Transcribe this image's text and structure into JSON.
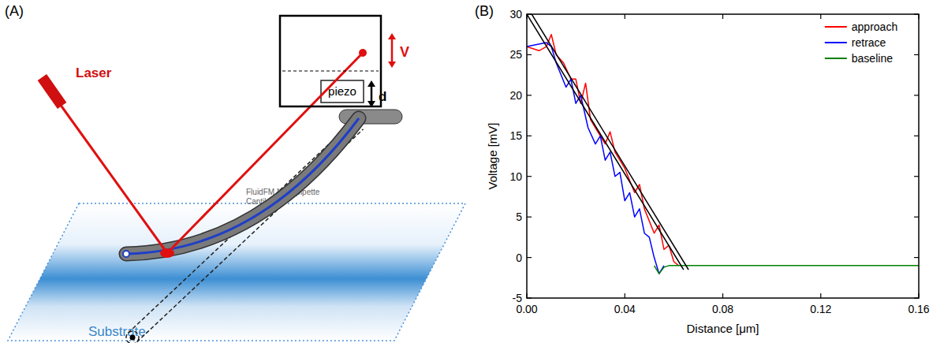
{
  "panel_labels": [
    "(A)",
    "(B)"
  ],
  "diagram": {
    "laser": "Laser",
    "signal": "V",
    "piezo": "piezo",
    "displacement": "d",
    "cantilever": "FluidFM Micropipette Cantilever",
    "substrate": "Substrate"
  },
  "chart_data": {
    "type": "line",
    "x_label": "Distance [μm]",
    "y_label": "Voltage [mV]",
    "xlim": [
      0,
      0.16
    ],
    "ylim": [
      -5,
      30
    ],
    "xticks": [
      {
        "value": 0,
        "label": "0.00"
      },
      0.04,
      0.08,
      0.12,
      0.16
    ],
    "yticks": [
      -5,
      0,
      5,
      10,
      15,
      20,
      25,
      30
    ],
    "grid": false,
    "legend": "upper right",
    "series": [
      {
        "name": "approach",
        "color": "#ff0000",
        "line_style": "solid",
        "x": [
          0,
          0.005,
          0.008,
          0.01,
          0.012,
          0.015,
          0.018,
          0.02,
          0.022,
          0.024,
          0.026,
          0.028,
          0.032,
          0.034,
          0.036,
          0.04,
          0.044,
          0.046,
          0.048,
          0.052,
          0.054,
          0.056,
          0.058,
          0.06,
          0.062
        ],
        "values": [
          26,
          25.5,
          26,
          27.5,
          25,
          24,
          22,
          22,
          19,
          21.5,
          17,
          16,
          14,
          15.5,
          13,
          11,
          8,
          9,
          6,
          3,
          4,
          1,
          1.5,
          -0.5,
          -1
        ]
      },
      {
        "name": "retrace",
        "color": "#0000ff",
        "line_style": "solid",
        "x": [
          0,
          0.008,
          0.01,
          0.012,
          0.016,
          0.018,
          0.02,
          0.022,
          0.025,
          0.028,
          0.03,
          0.032,
          0.034,
          0.036,
          0.038,
          0.04,
          0.042,
          0.044,
          0.046,
          0.048,
          0.05,
          0.052,
          0.054,
          0.056
        ],
        "values": [
          26,
          26.5,
          26,
          24,
          21,
          22,
          19,
          20,
          16,
          14,
          15,
          12,
          13,
          10,
          10.5,
          7,
          8,
          5,
          6,
          3,
          2.5,
          0,
          -2,
          -1
        ]
      },
      {
        "name": "baseline",
        "color": "#008000",
        "line_style": "solid",
        "x": [
          0.052,
          0.054,
          0.056,
          0.058,
          0.06,
          0.08,
          0.1,
          0.12,
          0.14,
          0.16
        ],
        "values": [
          -1,
          -2,
          -1.2,
          -1,
          -1,
          -1,
          -1,
          -1,
          -1,
          -1
        ]
      },
      {
        "color": "#000000",
        "line_style": "solid",
        "x": [
          0,
          0.064
        ],
        "values": [
          30,
          -1.5
        ]
      },
      {
        "color": "#000000",
        "line_style": "solid",
        "x": [
          0.002,
          0.066
        ],
        "values": [
          30,
          -1.5
        ]
      }
    ]
  }
}
